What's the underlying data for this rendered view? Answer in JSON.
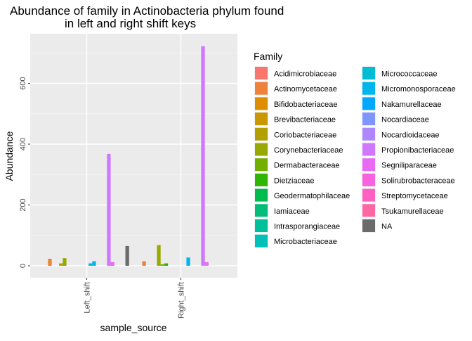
{
  "chart_data": {
    "type": "bar",
    "title_line1": "Abundance of family in Actinobacteria phylum found",
    "title_line2": "in left and right shift keys",
    "xlabel": "sample_source",
    "ylabel": "Abundance",
    "ylim": [
      0,
      730
    ],
    "y_ticks": [
      0,
      200,
      400,
      600
    ],
    "grid": true,
    "legend_title": "Family",
    "legend_position": "right",
    "categories": [
      "Left_shift",
      "Right_shift"
    ],
    "series": [
      {
        "name": "Acidimicrobiaceae",
        "color": "#F8766D",
        "values": [
          0,
          0
        ]
      },
      {
        "name": "Actinomycetaceae",
        "color": "#EC823C",
        "values": [
          23,
          15
        ]
      },
      {
        "name": "Bifidobacteriaceae",
        "color": "#DD8D00",
        "values": [
          0,
          0
        ]
      },
      {
        "name": "Brevibacteriaceae",
        "color": "#C99800",
        "values": [
          0,
          0
        ]
      },
      {
        "name": "Coriobacteriaceae",
        "color": "#B3A000",
        "values": [
          8,
          0
        ]
      },
      {
        "name": "Corynebacteriaceae",
        "color": "#97A800",
        "values": [
          25,
          68
        ]
      },
      {
        "name": "Dermabacteraceae",
        "color": "#72B000",
        "values": [
          0,
          5
        ]
      },
      {
        "name": "Dietziaceae",
        "color": "#2FB600",
        "values": [
          0,
          8
        ]
      },
      {
        "name": "Geodermatophilaceae",
        "color": "#00BB4E",
        "values": [
          0,
          0
        ]
      },
      {
        "name": "Iamiaceae",
        "color": "#00BE79",
        "values": [
          0,
          0
        ]
      },
      {
        "name": "Intrasporangiaceae",
        "color": "#00C09B",
        "values": [
          0,
          0
        ]
      },
      {
        "name": "Microbacteriaceae",
        "color": "#00C0B8",
        "values": [
          0,
          0
        ]
      },
      {
        "name": "Micrococcaceae",
        "color": "#00BCD4",
        "values": [
          8,
          0
        ]
      },
      {
        "name": "Micromonosporaceae",
        "color": "#00B5EE",
        "values": [
          15,
          27
        ]
      },
      {
        "name": "Nakamurellaceae",
        "color": "#00A8FF",
        "values": [
          0,
          0
        ]
      },
      {
        "name": "Nocardiaceae",
        "color": "#7F96FF",
        "values": [
          0,
          0
        ]
      },
      {
        "name": "Nocardioidaceae",
        "color": "#AE87FF",
        "values": [
          0,
          0
        ]
      },
      {
        "name": "Propionibacteriaceae",
        "color": "#CF78FF",
        "values": [
          368,
          722
        ]
      },
      {
        "name": "Segniliparaceae",
        "color": "#E76BF3",
        "values": [
          12,
          12
        ]
      },
      {
        "name": "Solirubrobacteraceae",
        "color": "#F763DE",
        "values": [
          0,
          0
        ]
      },
      {
        "name": "Streptomycetaceae",
        "color": "#FF61C3",
        "values": [
          0,
          0
        ]
      },
      {
        "name": "Tsukamurellaceae",
        "color": "#FF66A4",
        "values": [
          0,
          0
        ]
      },
      {
        "name": "NA",
        "color": "#6B6B6B",
        "values": [
          65,
          0
        ]
      }
    ]
  }
}
